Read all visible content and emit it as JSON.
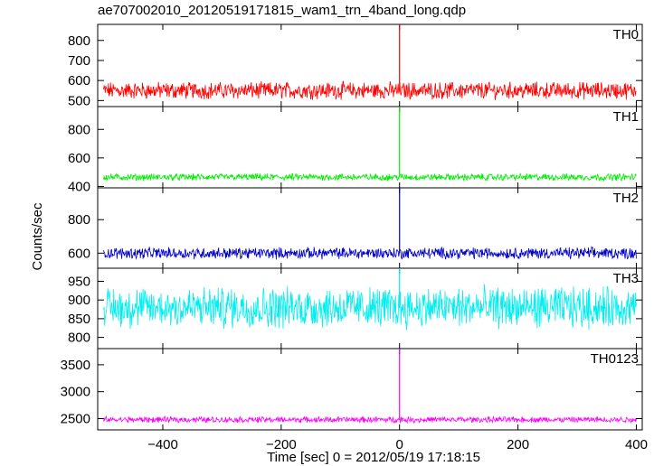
{
  "chart_data": {
    "type": "line",
    "title": "ae707002010_20120519171815_wam1_trn_4band_long.qdp",
    "xlabel": "Time [sec] 0 = 2012/05/19 17:18:15",
    "ylabel": "Counts/sec",
    "xlim": [
      -510,
      410
    ],
    "x_ticks": [
      "−400",
      "−200",
      "0",
      "200",
      "400"
    ],
    "x_tick_values": [
      -400,
      -200,
      0,
      200,
      400
    ],
    "grid": false,
    "panels": [
      {
        "name": "TH0",
        "color": "#ff0000",
        "ylim": [
          470,
          880
        ],
        "y_ticks": [
          500,
          600,
          700,
          800
        ],
        "baseline": 550,
        "noise": 35,
        "spike": {
          "x": 0,
          "y": 880
        }
      },
      {
        "name": "TH1",
        "color": "#00ee00",
        "ylim": [
          390,
          960
        ],
        "y_ticks": [
          400,
          600,
          800
        ],
        "baseline": 465,
        "noise": 20,
        "spike": {
          "x": 0,
          "y": 960
        }
      },
      {
        "name": "TH2",
        "color": "#0000cc",
        "ylim": [
          510,
          990
        ],
        "y_ticks": [
          600,
          800
        ],
        "baseline": 600,
        "noise": 28,
        "spike": {
          "x": 0,
          "y": 990
        }
      },
      {
        "name": "TH3",
        "color": "#00eeee",
        "ylim": [
          770,
          985
        ],
        "y_ticks": [
          800,
          850,
          900,
          950
        ],
        "baseline": 880,
        "noise": 45,
        "spike": {
          "x": 0,
          "y": 985
        }
      },
      {
        "name": "TH0123",
        "color": "#ff00ff",
        "ylim": [
          2290,
          3800
        ],
        "y_ticks": [
          2500,
          3000,
          3500
        ],
        "baseline": 2480,
        "noise": 45,
        "spike": {
          "x": 0,
          "y": 3800
        }
      }
    ]
  }
}
